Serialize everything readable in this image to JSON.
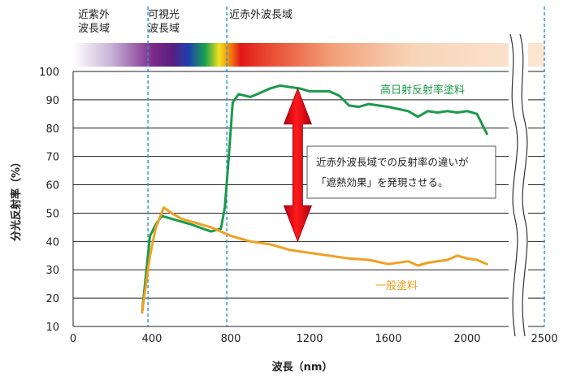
{
  "chart_data": {
    "type": "line",
    "xlabel": "波長（nm）",
    "ylabel": "分光反射率（%）",
    "xlim": [
      0,
      2500
    ],
    "ylim": [
      10,
      100
    ],
    "x_ticks": [
      "0",
      "400",
      "800",
      "1200",
      "1600",
      "2000",
      "2500"
    ],
    "y_ticks": [
      "10",
      "20",
      "30",
      "40",
      "50",
      "60",
      "70",
      "80",
      "90",
      "100"
    ],
    "grid": "horizontal",
    "axis_break": "between 2100 and 2500",
    "regions": [
      {
        "label": "近紫外\n波長域",
        "x_range": [
          0,
          380
        ]
      },
      {
        "label": "可視光\n波長域",
        "x_range": [
          380,
          780
        ]
      },
      {
        "label": "近赤外波長域",
        "x_range": [
          780,
          2500
        ]
      }
    ],
    "region_boundaries": [
      380,
      780,
      2500
    ],
    "series": [
      {
        "name": "高日射反射率塗料",
        "color": "#1a9a4a",
        "points": [
          [
            350,
            15
          ],
          [
            390,
            42
          ],
          [
            420,
            46
          ],
          [
            450,
            49
          ],
          [
            500,
            48
          ],
          [
            600,
            46
          ],
          [
            700,
            43.5
          ],
          [
            750,
            44.5
          ],
          [
            770,
            52
          ],
          [
            790,
            70
          ],
          [
            810,
            89
          ],
          [
            840,
            92
          ],
          [
            900,
            91
          ],
          [
            950,
            92.5
          ],
          [
            1000,
            94
          ],
          [
            1050,
            95
          ],
          [
            1100,
            94.5
          ],
          [
            1150,
            94
          ],
          [
            1200,
            93
          ],
          [
            1300,
            93
          ],
          [
            1350,
            91.5
          ],
          [
            1400,
            88
          ],
          [
            1450,
            87.5
          ],
          [
            1500,
            88.5
          ],
          [
            1550,
            88
          ],
          [
            1600,
            87.5
          ],
          [
            1700,
            86
          ],
          [
            1750,
            84
          ],
          [
            1800,
            86
          ],
          [
            1850,
            85.5
          ],
          [
            1900,
            86
          ],
          [
            1950,
            85.5
          ],
          [
            2000,
            86
          ],
          [
            2050,
            85
          ],
          [
            2100,
            78
          ]
        ]
      },
      {
        "name": "一般塗料",
        "color": "#f0a020",
        "points": [
          [
            350,
            15
          ],
          [
            390,
            35
          ],
          [
            420,
            45
          ],
          [
            460,
            52
          ],
          [
            500,
            50
          ],
          [
            550,
            48
          ],
          [
            600,
            47
          ],
          [
            700,
            45
          ],
          [
            800,
            42
          ],
          [
            900,
            40
          ],
          [
            1000,
            39
          ],
          [
            1100,
            37
          ],
          [
            1200,
            36
          ],
          [
            1300,
            35
          ],
          [
            1400,
            34
          ],
          [
            1500,
            33.5
          ],
          [
            1600,
            32
          ],
          [
            1700,
            33
          ],
          [
            1750,
            31.5
          ],
          [
            1800,
            32.5
          ],
          [
            1900,
            33.5
          ],
          [
            1950,
            35
          ],
          [
            2000,
            34
          ],
          [
            2050,
            33.5
          ],
          [
            2100,
            32
          ]
        ]
      }
    ],
    "annotation": {
      "text_line1": "近赤外波長域での反射率の違いが",
      "text_line2": "「遮熱効果」を発現させる。",
      "arrow_x": 1140,
      "arrow_y_range": [
        40,
        94
      ]
    }
  }
}
